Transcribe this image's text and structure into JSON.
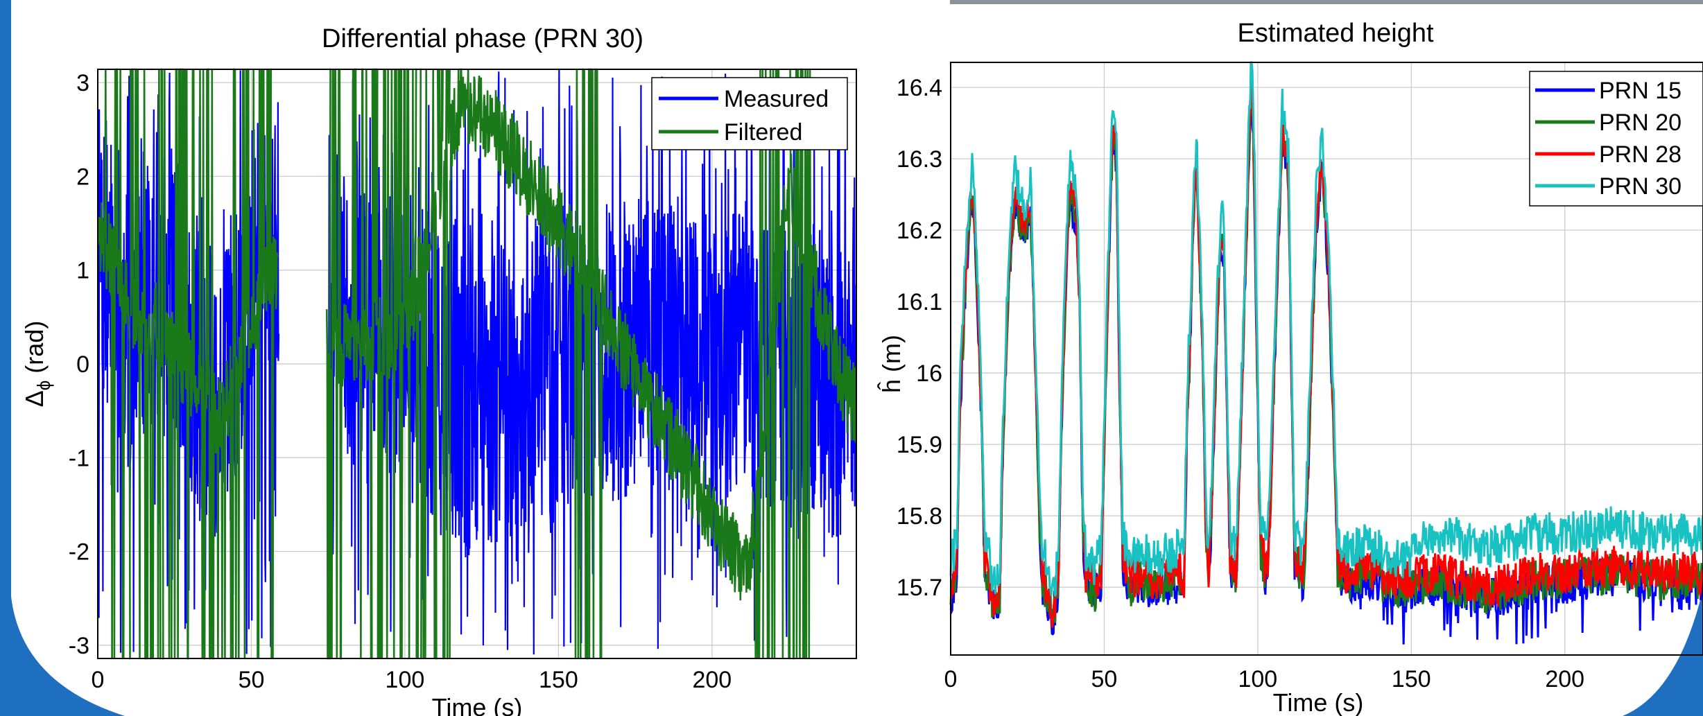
{
  "colors": {
    "frame_blue": "#1f6fc0",
    "photo_strip": "#8a939b",
    "measured": "#0000ff",
    "filtered": "#1a7a1a",
    "prn15": "#0000ff",
    "prn20": "#1a7a1a",
    "prn28": "#ff0000",
    "prn30": "#19c2c2",
    "grid": "#c8c8c8"
  },
  "chart_data": [
    {
      "type": "line",
      "title": "Differential phase (PRN 30)",
      "xlabel": "Time (s)",
      "ylabel_main": "Δ",
      "ylabel_sub": "ϕ",
      "ylabel_unit": " (rad)",
      "xlim": [
        0,
        247
      ],
      "ylim": [
        -3.14159,
        3.14159
      ],
      "xticks": [
        0,
        50,
        100,
        150,
        200
      ],
      "yticks": [
        -3,
        -2,
        -1,
        0,
        1,
        2,
        3
      ],
      "grid": true,
      "legend_position": "top-right",
      "description_of_signal": "wrapped phase; measured (blue) is dense noisy oscillation between -pi and pi; filtered (green) wraps repeatedly, with a slow drift from about 2.8 rad at 120 s down to about -2.2 rad at 210 s",
      "series": [
        {
          "name": "Measured",
          "sample_points": [
            [
              0,
              1.2
            ],
            [
              10,
              0.5
            ],
            [
              20,
              1.0
            ],
            [
              40,
              -0.5
            ],
            [
              55,
              1.5
            ],
            [
              70,
              1.2
            ],
            [
              80,
              0.6
            ],
            [
              100,
              0.3
            ],
            [
              120,
              -0.5
            ],
            [
              150,
              0.0
            ],
            [
              180,
              0.2
            ],
            [
              200,
              0.1
            ],
            [
              230,
              0.0
            ],
            [
              247,
              -0.5
            ]
          ]
        },
        {
          "name": "Filtered",
          "sample_points": [
            [
              0,
              1.5
            ],
            [
              10,
              0.6
            ],
            [
              20,
              0.4
            ],
            [
              40,
              -0.6
            ],
            [
              55,
              1.0
            ],
            [
              78,
              0.2
            ],
            [
              100,
              0.3
            ],
            [
              118,
              2.8
            ],
            [
              130,
              2.5
            ],
            [
              150,
              1.5
            ],
            [
              170,
              0.2
            ],
            [
              190,
              -1.0
            ],
            [
              205,
              -1.9
            ],
            [
              212,
              -2.2
            ],
            [
              225,
              2.0
            ],
            [
              240,
              0.0
            ],
            [
              247,
              -0.5
            ]
          ]
        }
      ]
    },
    {
      "type": "line",
      "title": "Estimated height",
      "xlabel": "Time (s)",
      "ylabel": "ĥ (m)",
      "xlim": [
        0,
        245
      ],
      "ylim": [
        15.605,
        16.435
      ],
      "xticks": [
        0,
        50,
        100,
        150,
        200
      ],
      "yticks": [
        15.7,
        15.8,
        15.9,
        16,
        16.1,
        16.2,
        16.3,
        16.4
      ],
      "grid": true,
      "legend_position": "top-right",
      "series": [
        {
          "name": "PRN 15"
        },
        {
          "name": "PRN 20"
        },
        {
          "name": "PRN 28"
        },
        {
          "name": "PRN 30"
        }
      ],
      "base_profile": [
        [
          0,
          15.7
        ],
        [
          2,
          15.74
        ],
        [
          3,
          15.95
        ],
        [
          5,
          16.15
        ],
        [
          7,
          16.26
        ],
        [
          8,
          16.2
        ],
        [
          10,
          15.95
        ],
        [
          11,
          15.75
        ],
        [
          14,
          15.68
        ],
        [
          16,
          15.7
        ],
        [
          17,
          15.9
        ],
        [
          19,
          16.15
        ],
        [
          21,
          16.25
        ],
        [
          24,
          16.2
        ],
        [
          26,
          16.24
        ],
        [
          27,
          16.1
        ],
        [
          29,
          15.8
        ],
        [
          30,
          15.72
        ],
        [
          33,
          15.67
        ],
        [
          35,
          15.7
        ],
        [
          36,
          15.92
        ],
        [
          38,
          16.2
        ],
        [
          39,
          16.26
        ],
        [
          41,
          16.22
        ],
        [
          42,
          16.1
        ],
        [
          43,
          15.8
        ],
        [
          44,
          15.72
        ],
        [
          47,
          15.7
        ],
        [
          49,
          15.72
        ],
        [
          50,
          15.9
        ],
        [
          52,
          16.25
        ],
        [
          53,
          16.35
        ],
        [
          54,
          16.3
        ],
        [
          55,
          16.0
        ],
        [
          56,
          15.75
        ],
        [
          58,
          15.71
        ],
        [
          62,
          15.72
        ],
        [
          66,
          15.71
        ],
        [
          70,
          15.72
        ],
        [
          74,
          15.72
        ],
        [
          76,
          15.71
        ],
        [
          77,
          15.95
        ],
        [
          78,
          16.05
        ],
        [
          79,
          16.22
        ],
        [
          80,
          16.3
        ],
        [
          82,
          16.05
        ],
        [
          83,
          15.8
        ],
        [
          84,
          15.72
        ],
        [
          85,
          15.82
        ],
        [
          87,
          16.1
        ],
        [
          88,
          16.2
        ],
        [
          89,
          16.18
        ],
        [
          90,
          15.95
        ],
        [
          91,
          15.74
        ],
        [
          93,
          15.72
        ],
        [
          95,
          16.0
        ],
        [
          97,
          16.3
        ],
        [
          98,
          16.42
        ],
        [
          99,
          16.25
        ],
        [
          100,
          15.95
        ],
        [
          101,
          15.76
        ],
        [
          103,
          15.72
        ],
        [
          104,
          15.8
        ],
        [
          106,
          16.1
        ],
        [
          108,
          16.35
        ],
        [
          110,
          16.28
        ],
        [
          111,
          16.0
        ],
        [
          112,
          15.75
        ],
        [
          115,
          15.72
        ],
        [
          117,
          15.95
        ],
        [
          119,
          16.22
        ],
        [
          121,
          16.3
        ],
        [
          123,
          16.15
        ],
        [
          125,
          15.9
        ],
        [
          126,
          15.74
        ],
        [
          128,
          15.72
        ],
        [
          135,
          15.73
        ],
        [
          145,
          15.71
        ],
        [
          160,
          15.72
        ],
        [
          175,
          15.7
        ],
        [
          190,
          15.72
        ],
        [
          200,
          15.72
        ],
        [
          215,
          15.73
        ],
        [
          230,
          15.72
        ],
        [
          245,
          15.72
        ]
      ],
      "series_offsets": [
        -0.015,
        -0.01,
        0.0,
        0.03
      ]
    }
  ]
}
